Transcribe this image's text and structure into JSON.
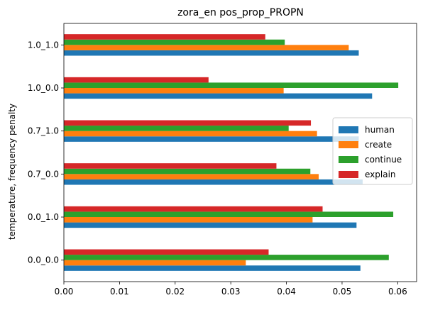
{
  "chart_data": {
    "type": "bar",
    "orientation": "horizontal",
    "title": "zora_en pos_prop_PROPN",
    "xlabel": "",
    "ylabel": "temperature, frequency penalty",
    "categories": [
      "0.0_0.0",
      "0.0_1.0",
      "0.7_0.0",
      "0.7_1.0",
      "1.0_0.0",
      "1.0_1.0"
    ],
    "xlim": [
      0,
      0.0634
    ],
    "xticks": [
      0.0,
      0.01,
      0.02,
      0.03,
      0.04,
      0.05,
      0.06
    ],
    "xtick_labels": [
      "0.00",
      "0.01",
      "0.02",
      "0.03",
      "0.04",
      "0.05",
      "0.06"
    ],
    "series": [
      {
        "name": "human",
        "color": "#1f77b4",
        "values": [
          0.0533,
          0.0526,
          0.0537,
          0.053,
          0.0554,
          0.053
        ]
      },
      {
        "name": "create",
        "color": "#ff7f0e",
        "values": [
          0.0327,
          0.0447,
          0.0458,
          0.0455,
          0.0395,
          0.0512
        ]
      },
      {
        "name": "continue",
        "color": "#2ca02c",
        "values": [
          0.0584,
          0.0592,
          0.0443,
          0.0404,
          0.0601,
          0.0397
        ]
      },
      {
        "name": "explain",
        "color": "#d62728",
        "values": [
          0.0368,
          0.0465,
          0.0382,
          0.0444,
          0.026,
          0.0362
        ]
      }
    ],
    "grid": false,
    "legend_position": "center-right"
  }
}
